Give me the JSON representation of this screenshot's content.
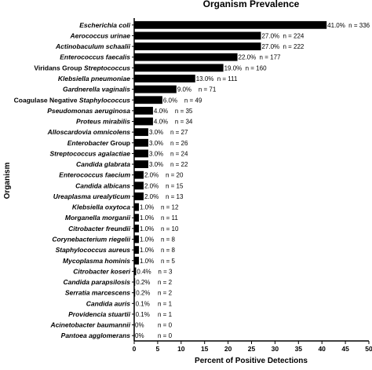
{
  "chart_data": {
    "type": "bar",
    "orientation": "horizontal",
    "title": "Organism Prevalence",
    "xlabel": "Percent of Positive Detections",
    "ylabel": "Organism",
    "xlim": [
      0,
      50
    ],
    "x_ticks": [
      "0",
      "5",
      "10",
      "15",
      "20",
      "25",
      "30",
      "35",
      "40",
      "45",
      "50"
    ],
    "grid": false,
    "bar_color": "#000000",
    "categories": [
      {
        "label": "Escherichia coli",
        "parts": [
          {
            "t": "Escherichia coli",
            "i": true
          }
        ]
      },
      {
        "label": "Aerococcus urinae",
        "parts": [
          {
            "t": "Aerococcus urinae",
            "i": true
          }
        ]
      },
      {
        "label": "Actinobaculum schaalii",
        "parts": [
          {
            "t": "Actinobaculum schaalii",
            "i": true
          }
        ]
      },
      {
        "label": "Enterococcus faecalis",
        "parts": [
          {
            "t": "Enterococcus faecalis",
            "i": true
          }
        ]
      },
      {
        "label": "Viridans Group Streptococcus",
        "parts": [
          {
            "t": "Viridans Group ",
            "i": false
          },
          {
            "t": "Streptococcus",
            "i": true
          }
        ]
      },
      {
        "label": "Klebsiella pneumoniae",
        "parts": [
          {
            "t": "Klebsiella pneumoniae",
            "i": true
          }
        ]
      },
      {
        "label": "Gardnerella vaginalis",
        "parts": [
          {
            "t": "Gardnerella vaginalis",
            "i": true
          }
        ]
      },
      {
        "label": "Coagulase Negative Staphylococcus",
        "parts": [
          {
            "t": "Coagulase Negative ",
            "i": false
          },
          {
            "t": "Staphylococcus",
            "i": true
          }
        ]
      },
      {
        "label": "Pseudomonas aeruginosa",
        "parts": [
          {
            "t": "Pseudomonas aeruginosa",
            "i": true
          }
        ]
      },
      {
        "label": "Proteus mirabilis",
        "parts": [
          {
            "t": "Proteus mirabilis",
            "i": true
          }
        ]
      },
      {
        "label": "Alloscardovia omnicolens",
        "parts": [
          {
            "t": "Alloscardovia omnicolens",
            "i": true
          }
        ]
      },
      {
        "label": "Enterobacter Group",
        "parts": [
          {
            "t": "Enterobacter",
            "i": true
          },
          {
            "t": " Group",
            "i": false
          }
        ]
      },
      {
        "label": "Streptococcus agalactiae",
        "parts": [
          {
            "t": "Streptococcus agalactiae",
            "i": true
          }
        ]
      },
      {
        "label": "Candida glabrata",
        "parts": [
          {
            "t": "Candida glabrata",
            "i": true
          }
        ]
      },
      {
        "label": "Enterococcus faecium",
        "parts": [
          {
            "t": "Enterococcus faecium",
            "i": true
          }
        ]
      },
      {
        "label": "Candida albicans",
        "parts": [
          {
            "t": "Candida albicans",
            "i": true
          }
        ]
      },
      {
        "label": "Ureaplasma urealyticum",
        "parts": [
          {
            "t": "Ureaplasma urealyticum",
            "i": true
          }
        ]
      },
      {
        "label": "Klebsiella oxytoca",
        "parts": [
          {
            "t": "Klebsiella oxytoca",
            "i": true
          }
        ]
      },
      {
        "label": "Morganella morganii",
        "parts": [
          {
            "t": "Morganella morganii",
            "i": true
          }
        ]
      },
      {
        "label": "Citrobacter freundii",
        "parts": [
          {
            "t": "Citrobacter freundii",
            "i": true
          }
        ]
      },
      {
        "label": "Corynebacterium riegelii",
        "parts": [
          {
            "t": "Corynebacterium riegelii",
            "i": true
          }
        ]
      },
      {
        "label": "Staphylococcus aureus",
        "parts": [
          {
            "t": "Staphylococcus aureus",
            "i": true
          }
        ]
      },
      {
        "label": "Mycoplasma hominis",
        "parts": [
          {
            "t": "Mycoplasma hominis",
            "i": true
          }
        ]
      },
      {
        "label": "Citrobacter koseri",
        "parts": [
          {
            "t": "Citrobacter koseri",
            "i": true
          }
        ]
      },
      {
        "label": "Candida parapsilosis",
        "parts": [
          {
            "t": "Candida parapsilosis",
            "i": true
          }
        ]
      },
      {
        "label": "Serratia marcescens",
        "parts": [
          {
            "t": "Serratia marcescens",
            "i": true
          }
        ]
      },
      {
        "label": "Candida auris",
        "parts": [
          {
            "t": "Candida auris",
            "i": true
          }
        ]
      },
      {
        "label": "Providencia stuartii",
        "parts": [
          {
            "t": "Providencia stuartii",
            "i": true
          }
        ]
      },
      {
        "label": "Acinetobacter baumannii",
        "parts": [
          {
            "t": "Acinetobacter baumannii",
            "i": true
          }
        ]
      },
      {
        "label": "Pantoea agglomerans",
        "parts": [
          {
            "t": "Pantoea agglomerans",
            "i": true
          }
        ]
      }
    ],
    "values": [
      41.0,
      27.0,
      27.0,
      22.0,
      19.0,
      13.0,
      9.0,
      6.0,
      4.0,
      4.0,
      3.0,
      3.0,
      3.0,
      3.0,
      2.0,
      2.0,
      2.0,
      1.0,
      1.0,
      1.0,
      1.0,
      1.0,
      1.0,
      0.4,
      0.2,
      0.2,
      0.1,
      0.1,
      0,
      0
    ],
    "percent_labels": [
      "41.0%",
      "27.0%",
      "27.0%",
      "22.0%",
      "19.0%",
      "13.0%",
      "9.0%",
      "6.0%",
      "4.0%",
      "4.0%",
      "3.0%",
      "3.0%",
      "3.0%",
      "3.0%",
      "2.0%",
      "2.0%",
      "2.0%",
      "1.0%",
      "1.0%",
      "1.0%",
      "1.0%",
      "1.0%",
      "1.0%",
      "0.4%",
      "0.2%",
      "0.2%",
      "0.1%",
      "0.1%",
      "0%",
      "0%"
    ],
    "n_labels": [
      "n = 336",
      "n = 224",
      "n = 222",
      "n = 177",
      "n = 160",
      "n = 111",
      "n = 71",
      "n = 49",
      "n = 35",
      "n = 34",
      "n = 27",
      "n = 26",
      "n = 24",
      "n = 22",
      "n = 20",
      "n = 15",
      "n = 13",
      "n = 12",
      "n = 11",
      "n = 10",
      "n = 8",
      "n = 8",
      "n = 5",
      "n = 3",
      "n = 2",
      "n = 2",
      "n = 1",
      "n = 1",
      "n = 0",
      "n = 0"
    ]
  }
}
